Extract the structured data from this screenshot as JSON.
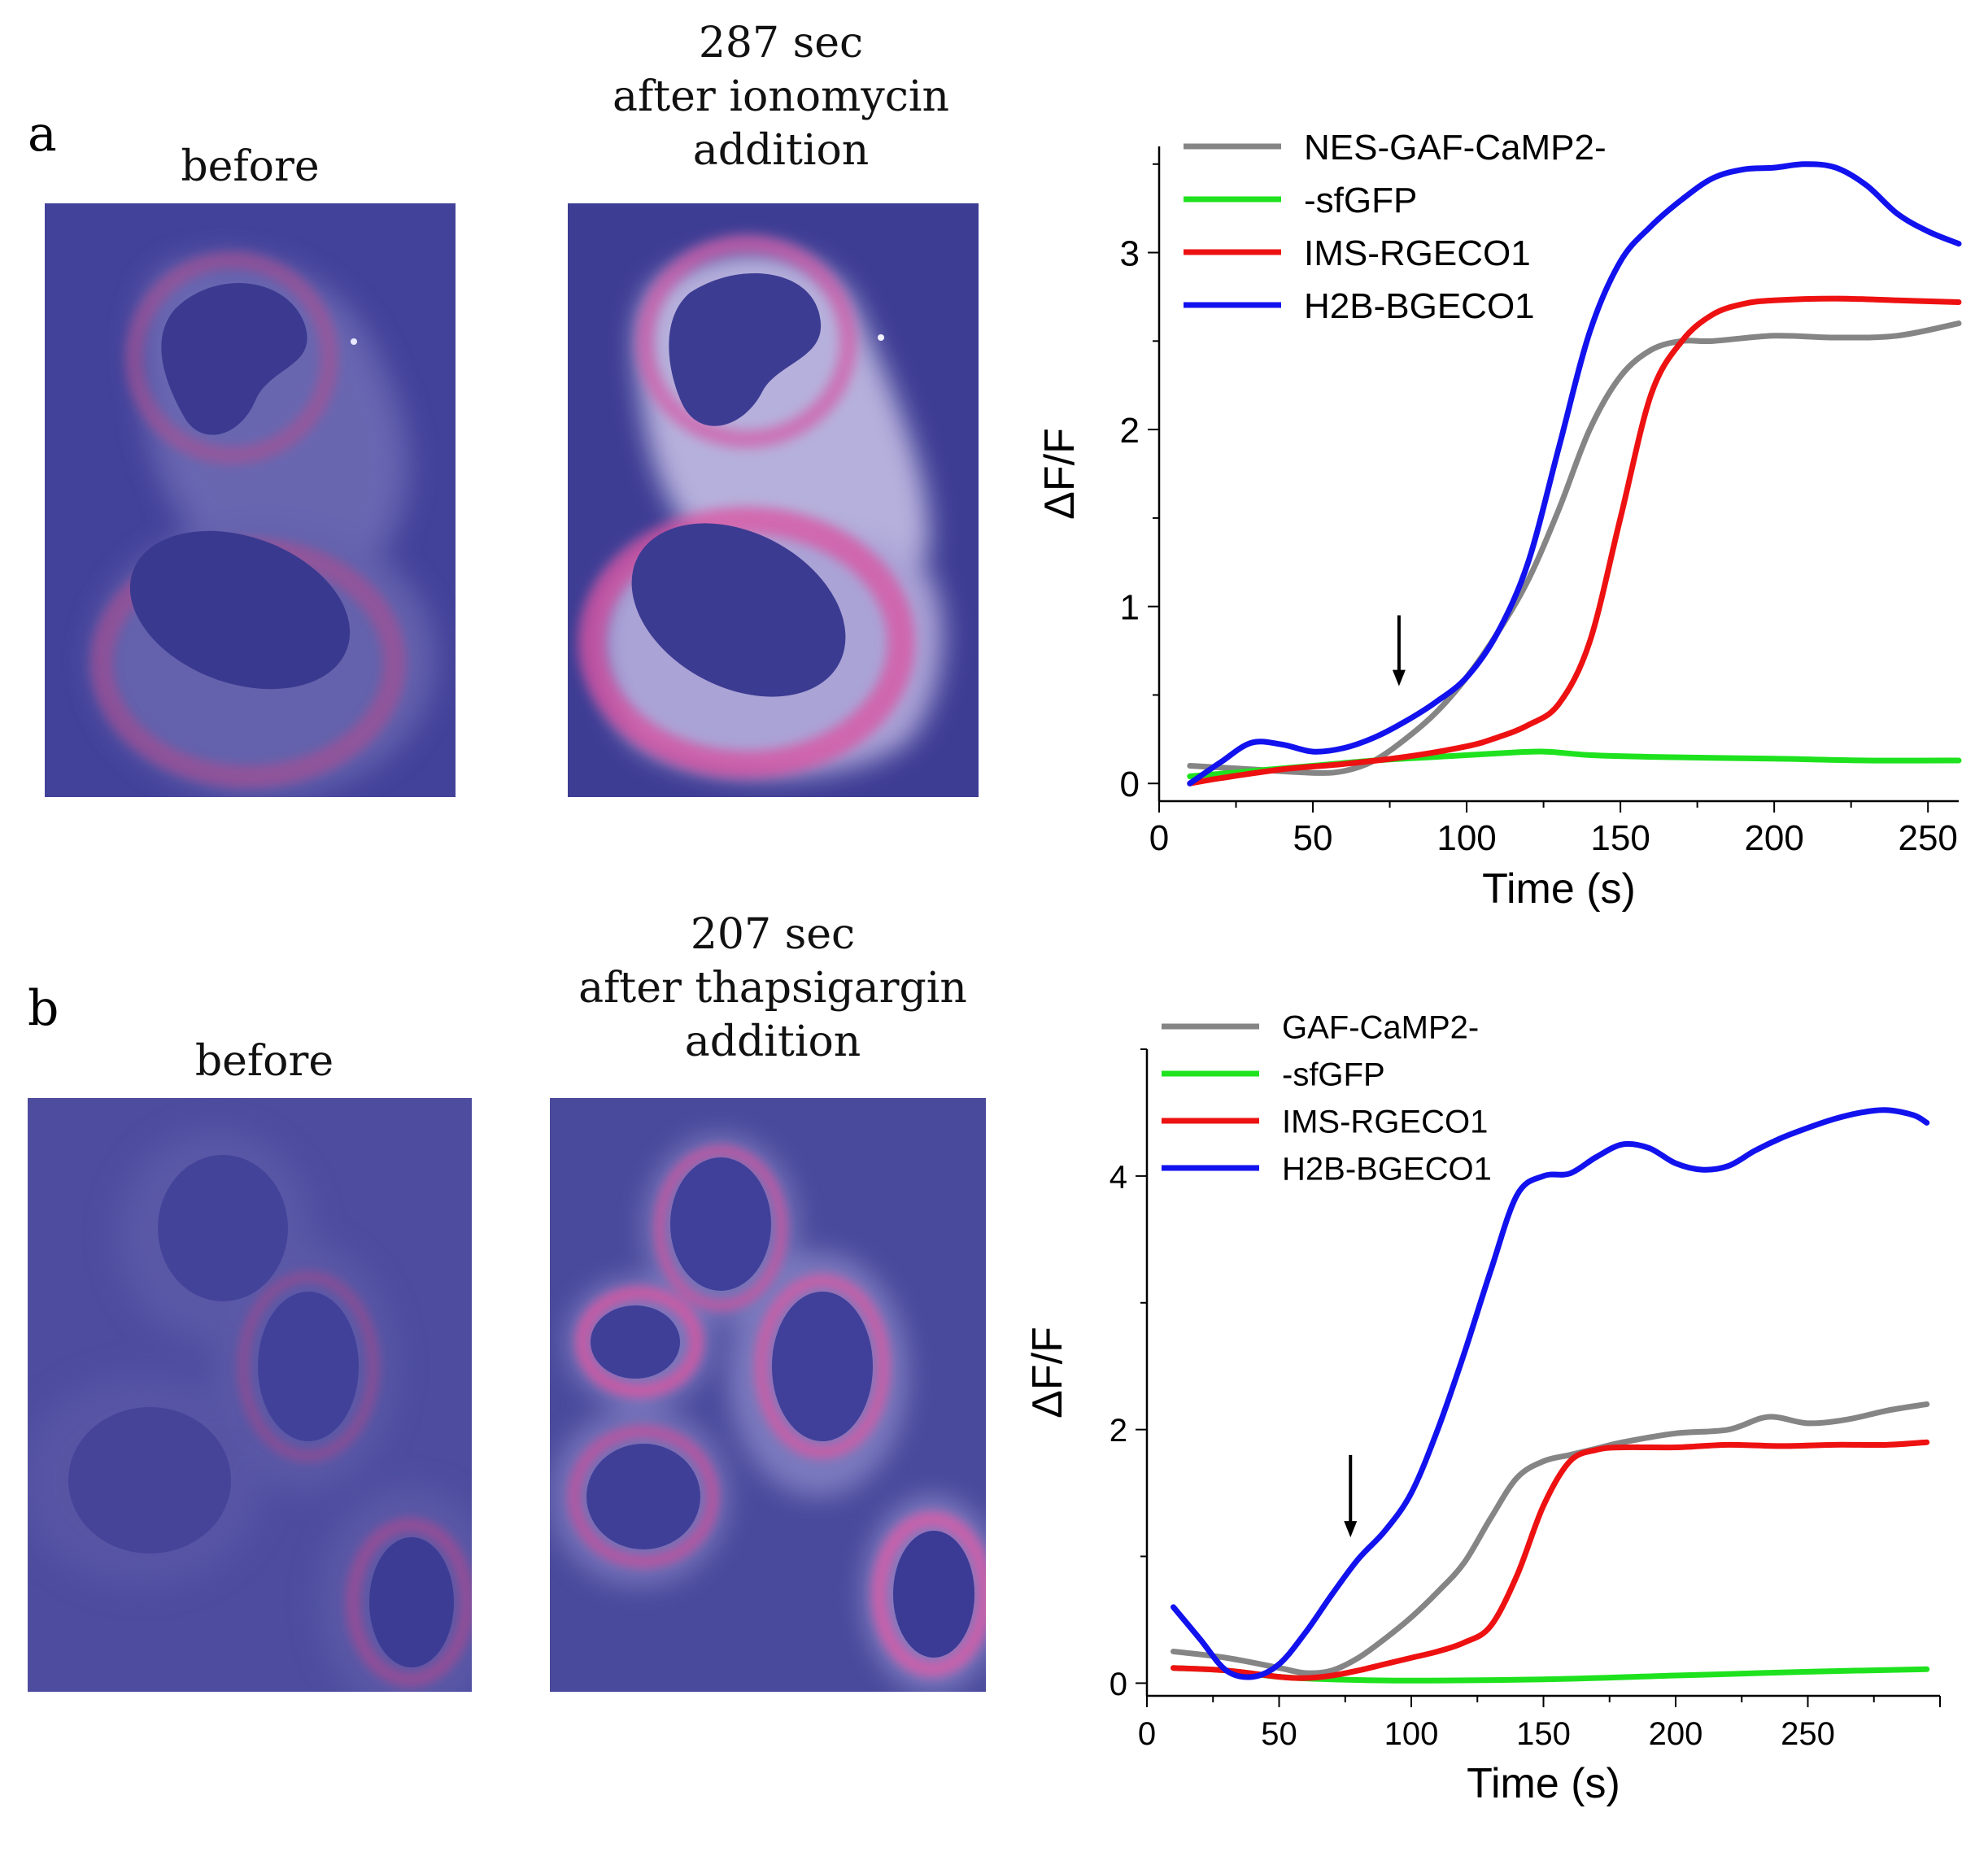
{
  "panels": [
    {
      "letter": "a",
      "before_caption": "before",
      "after_caption": [
        "287 sec",
        "after ionomycin",
        "addition"
      ]
    },
    {
      "letter": "b",
      "before_caption": "before",
      "after_caption": [
        "207 sec",
        "after thapsigargin",
        "addition"
      ]
    }
  ],
  "chart_data": [
    {
      "type": "line",
      "xlabel": "Time (s)",
      "ylabel": "ΔF/F",
      "xlim": [
        0,
        260
      ],
      "ylim": [
        -0.1,
        3.6
      ],
      "xticks": [
        0,
        50,
        100,
        150,
        200,
        250
      ],
      "yticks": [
        0,
        1,
        2,
        3
      ],
      "legend_position": "top-left",
      "annotation": {
        "type": "arrow",
        "x": 78,
        "y_from": 0.95,
        "y_to": 0.55
      },
      "series": [
        {
          "name": "NES-GAF-CaMP2-",
          "color": "#858585",
          "points": [
            [
              10,
              0.1
            ],
            [
              30,
              0.08
            ],
            [
              50,
              0.06
            ],
            [
              60,
              0.07
            ],
            [
              70,
              0.13
            ],
            [
              80,
              0.25
            ],
            [
              90,
              0.4
            ],
            [
              100,
              0.6
            ],
            [
              110,
              0.85
            ],
            [
              120,
              1.15
            ],
            [
              130,
              1.55
            ],
            [
              140,
              2.0
            ],
            [
              150,
              2.3
            ],
            [
              160,
              2.45
            ],
            [
              170,
              2.5
            ],
            [
              180,
              2.5
            ],
            [
              200,
              2.53
            ],
            [
              220,
              2.52
            ],
            [
              240,
              2.53
            ],
            [
              260,
              2.6
            ]
          ]
        },
        {
          "name": "-sfGFP",
          "color": "#1ee21e",
          "points": [
            [
              10,
              0.04
            ],
            [
              30,
              0.07
            ],
            [
              50,
              0.1
            ],
            [
              70,
              0.13
            ],
            [
              90,
              0.15
            ],
            [
              110,
              0.17
            ],
            [
              125,
              0.18
            ],
            [
              140,
              0.16
            ],
            [
              160,
              0.15
            ],
            [
              200,
              0.14
            ],
            [
              230,
              0.13
            ],
            [
              260,
              0.13
            ]
          ]
        },
        {
          "name": "IMS-RGECO1",
          "color": "#ee1111",
          "points": [
            [
              10,
              0.0
            ],
            [
              20,
              0.03
            ],
            [
              40,
              0.08
            ],
            [
              60,
              0.11
            ],
            [
              80,
              0.15
            ],
            [
              100,
              0.21
            ],
            [
              110,
              0.26
            ],
            [
              120,
              0.33
            ],
            [
              130,
              0.45
            ],
            [
              140,
              0.8
            ],
            [
              150,
              1.5
            ],
            [
              160,
              2.2
            ],
            [
              170,
              2.5
            ],
            [
              180,
              2.65
            ],
            [
              190,
              2.71
            ],
            [
              200,
              2.73
            ],
            [
              220,
              2.74
            ],
            [
              240,
              2.73
            ],
            [
              260,
              2.72
            ]
          ]
        },
        {
          "name": "H2B-BGECO1",
          "color": "#1212ee",
          "points": [
            [
              10,
              0.0
            ],
            [
              20,
              0.12
            ],
            [
              30,
              0.23
            ],
            [
              40,
              0.22
            ],
            [
              50,
              0.18
            ],
            [
              60,
              0.2
            ],
            [
              70,
              0.26
            ],
            [
              80,
              0.35
            ],
            [
              90,
              0.46
            ],
            [
              100,
              0.6
            ],
            [
              110,
              0.85
            ],
            [
              120,
              1.25
            ],
            [
              130,
              1.9
            ],
            [
              140,
              2.55
            ],
            [
              150,
              2.95
            ],
            [
              160,
              3.15
            ],
            [
              170,
              3.3
            ],
            [
              180,
              3.42
            ],
            [
              190,
              3.47
            ],
            [
              200,
              3.48
            ],
            [
              210,
              3.5
            ],
            [
              220,
              3.48
            ],
            [
              230,
              3.38
            ],
            [
              240,
              3.22
            ],
            [
              250,
              3.12
            ],
            [
              260,
              3.05
            ]
          ]
        }
      ]
    },
    {
      "type": "line",
      "xlabel": "Time (s)",
      "ylabel": "ΔF/F",
      "xlim": [
        0,
        300
      ],
      "ylim": [
        -0.1,
        5.0
      ],
      "xticks": [
        0,
        50,
        100,
        150,
        200,
        250
      ],
      "yticks": [
        0,
        2,
        4
      ],
      "legend_position": "top-left",
      "annotation": {
        "type": "arrow",
        "x": 77,
        "y_from": 1.8,
        "y_to": 1.15
      },
      "series": [
        {
          "name": "GAF-CaMP2-",
          "color": "#858585",
          "points": [
            [
              10,
              0.25
            ],
            [
              30,
              0.2
            ],
            [
              50,
              0.12
            ],
            [
              60,
              0.08
            ],
            [
              70,
              0.1
            ],
            [
              80,
              0.2
            ],
            [
              90,
              0.35
            ],
            [
              100,
              0.52
            ],
            [
              110,
              0.72
            ],
            [
              120,
              0.95
            ],
            [
              130,
              1.3
            ],
            [
              140,
              1.62
            ],
            [
              150,
              1.75
            ],
            [
              160,
              1.8
            ],
            [
              170,
              1.85
            ],
            [
              180,
              1.9
            ],
            [
              200,
              1.97
            ],
            [
              220,
              2.0
            ],
            [
              235,
              2.1
            ],
            [
              250,
              2.05
            ],
            [
              265,
              2.08
            ],
            [
              280,
              2.15
            ],
            [
              295,
              2.2
            ]
          ]
        },
        {
          "name": "-sfGFP",
          "color": "#1ee21e",
          "points": [
            [
              10,
              0.12
            ],
            [
              30,
              0.1
            ],
            [
              50,
              0.05
            ],
            [
              70,
              0.03
            ],
            [
              100,
              0.02
            ],
            [
              150,
              0.03
            ],
            [
              200,
              0.06
            ],
            [
              250,
              0.09
            ],
            [
              295,
              0.11
            ]
          ]
        },
        {
          "name": "IMS-RGECO1",
          "color": "#ee1111",
          "points": [
            [
              10,
              0.12
            ],
            [
              30,
              0.1
            ],
            [
              50,
              0.05
            ],
            [
              60,
              0.04
            ],
            [
              70,
              0.06
            ],
            [
              80,
              0.1
            ],
            [
              90,
              0.15
            ],
            [
              100,
              0.2
            ],
            [
              110,
              0.25
            ],
            [
              120,
              0.32
            ],
            [
              130,
              0.45
            ],
            [
              140,
              0.85
            ],
            [
              150,
              1.4
            ],
            [
              160,
              1.75
            ],
            [
              170,
              1.84
            ],
            [
              180,
              1.86
            ],
            [
              200,
              1.86
            ],
            [
              220,
              1.88
            ],
            [
              240,
              1.87
            ],
            [
              260,
              1.88
            ],
            [
              280,
              1.88
            ],
            [
              295,
              1.9
            ]
          ]
        },
        {
          "name": "H2B-BGECO1",
          "color": "#1212ee",
          "points": [
            [
              10,
              0.6
            ],
            [
              20,
              0.35
            ],
            [
              30,
              0.1
            ],
            [
              40,
              0.05
            ],
            [
              50,
              0.15
            ],
            [
              60,
              0.4
            ],
            [
              70,
              0.7
            ],
            [
              80,
              0.98
            ],
            [
              90,
              1.2
            ],
            [
              100,
              1.5
            ],
            [
              110,
              2.0
            ],
            [
              120,
              2.6
            ],
            [
              130,
              3.25
            ],
            [
              140,
              3.85
            ],
            [
              150,
              4.0
            ],
            [
              160,
              4.02
            ],
            [
              170,
              4.15
            ],
            [
              180,
              4.25
            ],
            [
              190,
              4.22
            ],
            [
              200,
              4.1
            ],
            [
              210,
              4.05
            ],
            [
              220,
              4.08
            ],
            [
              230,
              4.2
            ],
            [
              240,
              4.3
            ],
            [
              250,
              4.38
            ],
            [
              260,
              4.45
            ],
            [
              270,
              4.5
            ],
            [
              280,
              4.52
            ],
            [
              290,
              4.48
            ],
            [
              295,
              4.42
            ]
          ]
        }
      ]
    }
  ]
}
